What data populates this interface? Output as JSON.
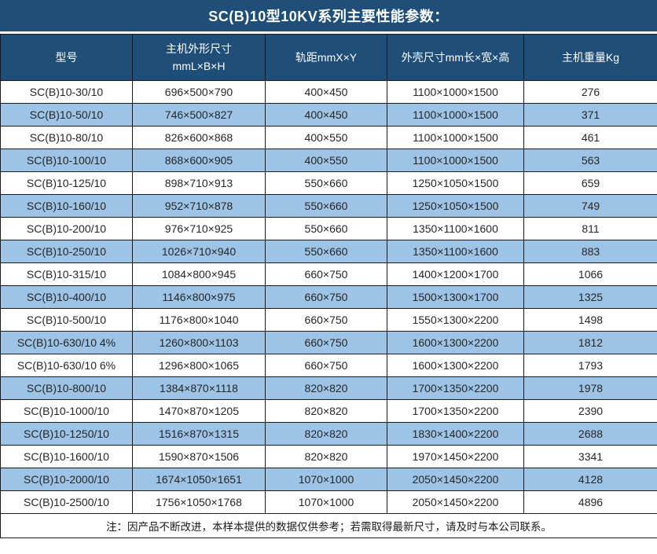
{
  "title": "SC(B)10型10KV系列主要性能参数：",
  "colors": {
    "header_bg": "#1F4E79",
    "stripe_bg": "#9DC3E6",
    "row_bg": "#FFFFFF",
    "header_text": "#FFFFFF",
    "body_text": "#262626",
    "border": "#1A1A1A"
  },
  "table": {
    "header": {
      "col1": "型号",
      "col2_line1": "主机外形尺寸",
      "col2_line2": "mmL×B×H",
      "col3": "轨距mmX×Y",
      "col4": "外壳尺寸mm长×宽×高",
      "col5": "主机重量Kg"
    },
    "rows": [
      [
        "SC(B)10-30/10",
        "696×500×790",
        "400×450",
        "1100×1000×1500",
        "276"
      ],
      [
        "SC(B)10-50/10",
        "746×500×827",
        "400×450",
        "1100×1000×1500",
        "371"
      ],
      [
        "SC(B)10-80/10",
        "826×600×868",
        "400×550",
        "1100×1000×1500",
        "461"
      ],
      [
        "SC(B)10-100/10",
        "868×600×905",
        "400×550",
        "1100×1000×1500",
        "563"
      ],
      [
        "SC(B)10-125/10",
        "898×710×913",
        "550×660",
        "1250×1050×1500",
        "659"
      ],
      [
        "SC(B)10-160/10",
        "952×710×878",
        "550×660",
        "1250×1050×1500",
        "749"
      ],
      [
        "SC(B)10-200/10",
        "976×710×925",
        "550×660",
        "1350×1100×1600",
        "811"
      ],
      [
        "SC(B)10-250/10",
        "1026×710×940",
        "550×660",
        "1350×1100×1600",
        "883"
      ],
      [
        "SC(B)10-315/10",
        "1084×800×945",
        "660×750",
        "1400×1200×1700",
        "1066"
      ],
      [
        "SC(B)10-400/10",
        "1146×800×975",
        "660×750",
        "1500×1300×1700",
        "1325"
      ],
      [
        "SC(B)10-500/10",
        "1176×800×1040",
        "660×750",
        "1550×1300×2200",
        "1498"
      ],
      [
        "SC(B)10-630/10 4%",
        "1260×800×1103",
        "660×750",
        "1600×1300×2200",
        "1812"
      ],
      [
        "SC(B)10-630/10 6%",
        "1296×800×1065",
        "660×750",
        "1600×1300×2200",
        "1793"
      ],
      [
        "SC(B)10-800/10",
        "1384×870×1118",
        "820×820",
        "1700×1350×2200",
        "1978"
      ],
      [
        "SC(B)10-1000/10",
        "1470×870×1205",
        "820×820",
        "1700×1350×2200",
        "2390"
      ],
      [
        "SC(B)10-1250/10",
        "1516×870×1315",
        "820×820",
        "1830×1400×2200",
        "2688"
      ],
      [
        "SC(B)10-1600/10",
        "1590×870×1506",
        "820×820",
        "1970×1450×2200",
        "3341"
      ],
      [
        "SC(B)10-2000/10",
        "1674×1050×1651",
        "1070×1000",
        "2050×1450×2200",
        "4128"
      ],
      [
        "SC(B)10-2500/10",
        "1756×1050×1768",
        "1070×1000",
        "2050×1450×2200",
        "4896"
      ]
    ]
  },
  "note": "注：因产品不断改进，本样本提供的数据仅供参考；若需取得最新尺寸，请及时与本公司联系。"
}
